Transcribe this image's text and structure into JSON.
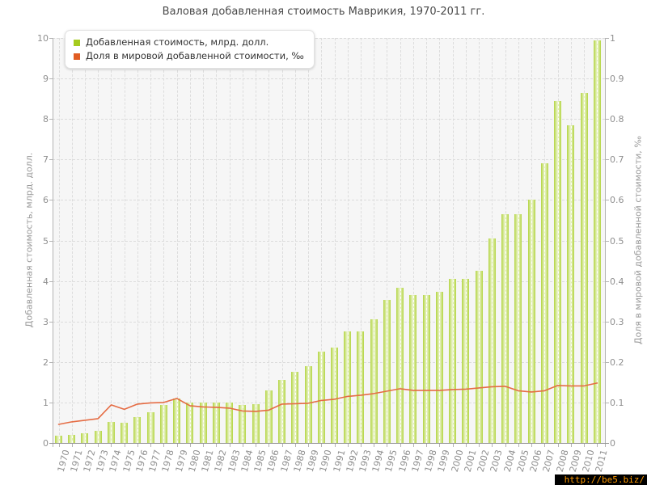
{
  "title": "Валовая добавленная стоимость Маврикия, 1970-2011 гг.",
  "watermark": "http://be5.biz/",
  "legend": {
    "items": [
      {
        "label": "Добавленная стоимость, млрд. долл.",
        "color": "#a5cb1e"
      },
      {
        "label": "Доля в мировой добавленной стоимости, ‰",
        "color": "#e15c22"
      }
    ]
  },
  "colors": {
    "bar_edge": "#b3d541",
    "bar_mid": "#d4e795",
    "bar_center": "#eef5d4",
    "line": "#e56c44",
    "plot_bg": "#f6f6f6",
    "grid": "#dcdcdc",
    "axis": "#b3b3b3",
    "label": "#8f8f8f"
  },
  "chart_data": {
    "type": "bar",
    "title": "Валовая добавленная стоимость Маврикия, 1970-2011 гг.",
    "categories": [
      "1970",
      "1971",
      "1972",
      "1973",
      "1974",
      "1975",
      "1976",
      "1977",
      "1978",
      "1979",
      "1980",
      "1981",
      "1982",
      "1983",
      "1984",
      "1985",
      "1986",
      "1987",
      "1988",
      "1989",
      "1990",
      "1991",
      "1992",
      "1993",
      "1994",
      "1995",
      "1996",
      "1997",
      "1998",
      "1999",
      "2000",
      "2001",
      "2002",
      "2003",
      "2004",
      "2005",
      "2006",
      "2007",
      "2008",
      "2009",
      "2010",
      "2011"
    ],
    "series": [
      {
        "name": "Добавленная стоимость, млрд. долл.",
        "type": "bar",
        "axis": "left",
        "values": [
          0.17,
          0.2,
          0.24,
          0.3,
          0.51,
          0.5,
          0.64,
          0.75,
          0.93,
          1.09,
          1.0,
          1.0,
          0.99,
          0.99,
          0.94,
          0.95,
          1.3,
          1.55,
          1.76,
          1.9,
          2.26,
          2.36,
          2.76,
          2.76,
          3.05,
          3.54,
          3.84,
          3.66,
          3.65,
          3.74,
          4.05,
          4.05,
          4.25,
          5.05,
          5.65,
          5.65,
          6.0,
          6.9,
          8.45,
          7.85,
          8.65,
          9.95
        ]
      },
      {
        "name": "Доля в мировой добавленной стоимости, ‰",
        "type": "line",
        "axis": "right",
        "values": [
          0.046,
          0.052,
          0.056,
          0.06,
          0.094,
          0.083,
          0.096,
          0.099,
          0.1,
          0.11,
          0.092,
          0.089,
          0.088,
          0.086,
          0.079,
          0.078,
          0.081,
          0.096,
          0.097,
          0.098,
          0.105,
          0.108,
          0.115,
          0.118,
          0.122,
          0.128,
          0.134,
          0.13,
          0.13,
          0.13,
          0.132,
          0.133,
          0.136,
          0.139,
          0.14,
          0.129,
          0.126,
          0.129,
          0.142,
          0.141,
          0.141,
          0.148
        ]
      }
    ],
    "left_axis": {
      "title": "Добавленная стоимость, млрд. долл.",
      "min": 0,
      "max": 10,
      "tick_labels": [
        "0",
        "1",
        "2",
        "3",
        "4",
        "5",
        "6",
        "7",
        "8",
        "9",
        "10"
      ]
    },
    "right_axis": {
      "title": "Доля в мировой добавленной стоимости, ‰",
      "min": 0,
      "max": 1,
      "tick_labels": [
        "0",
        "0.1",
        "0.2",
        "0.3",
        "0.4",
        "0.5",
        "0.6",
        "0.7",
        "0.8",
        "0.9",
        "1"
      ]
    },
    "grid": true,
    "legend_position": "top-left"
  }
}
